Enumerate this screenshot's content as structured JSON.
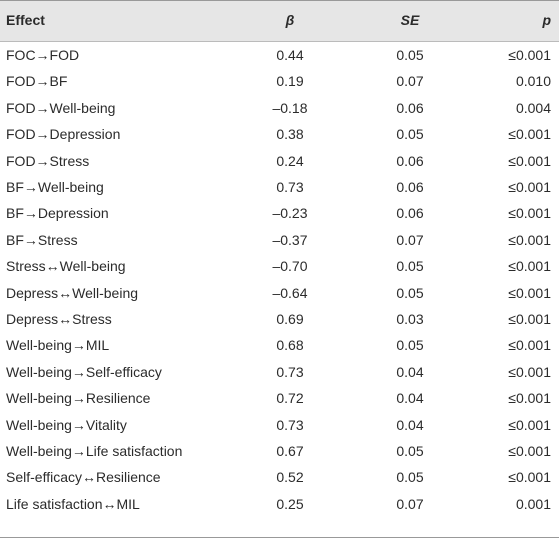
{
  "table": {
    "header": [
      "Effect",
      "β",
      "SE",
      "p"
    ],
    "rows": [
      [
        "FOC→FOD",
        "0.44",
        "0.05",
        "≤0.001"
      ],
      [
        "FOD→BF",
        "0.19",
        "0.07",
        "0.010"
      ],
      [
        "FOD→Well-being",
        "–0.18",
        "0.06",
        "0.004"
      ],
      [
        "FOD→Depression",
        "0.38",
        "0.05",
        "≤0.001"
      ],
      [
        "FOD→Stress",
        "0.24",
        "0.06",
        "≤0.001"
      ],
      [
        "BF→Well-being",
        "0.73",
        "0.06",
        "≤0.001"
      ],
      [
        "BF→Depression",
        "–0.23",
        "0.06",
        "≤0.001"
      ],
      [
        "BF→Stress",
        "–0.37",
        "0.07",
        "≤0.001"
      ],
      [
        "Stress↔Well-being",
        "–0.70",
        "0.05",
        "≤0.001"
      ],
      [
        "Depress↔Well-being",
        "–0.64",
        "0.05",
        "≤0.001"
      ],
      [
        "Depress↔Stress",
        "0.69",
        "0.03",
        "≤0.001"
      ],
      [
        "Well-being→MIL",
        "0.68",
        "0.05",
        "≤0.001"
      ],
      [
        "Well-being→Self-efficacy",
        "0.73",
        "0.04",
        "≤0.001"
      ],
      [
        "Well-being→Resilience",
        "0.72",
        "0.04",
        "≤0.001"
      ],
      [
        "Well-being→Vitality",
        "0.73",
        "0.04",
        "≤0.001"
      ],
      [
        "Well-being→Life satisfaction",
        "0.67",
        "0.05",
        "≤0.001"
      ],
      [
        "Self-efficacy↔Resilience",
        "0.52",
        "0.05",
        "≤0.001"
      ],
      [
        "Life satisfaction↔MIL",
        "0.25",
        "0.07",
        "0.001"
      ]
    ]
  }
}
